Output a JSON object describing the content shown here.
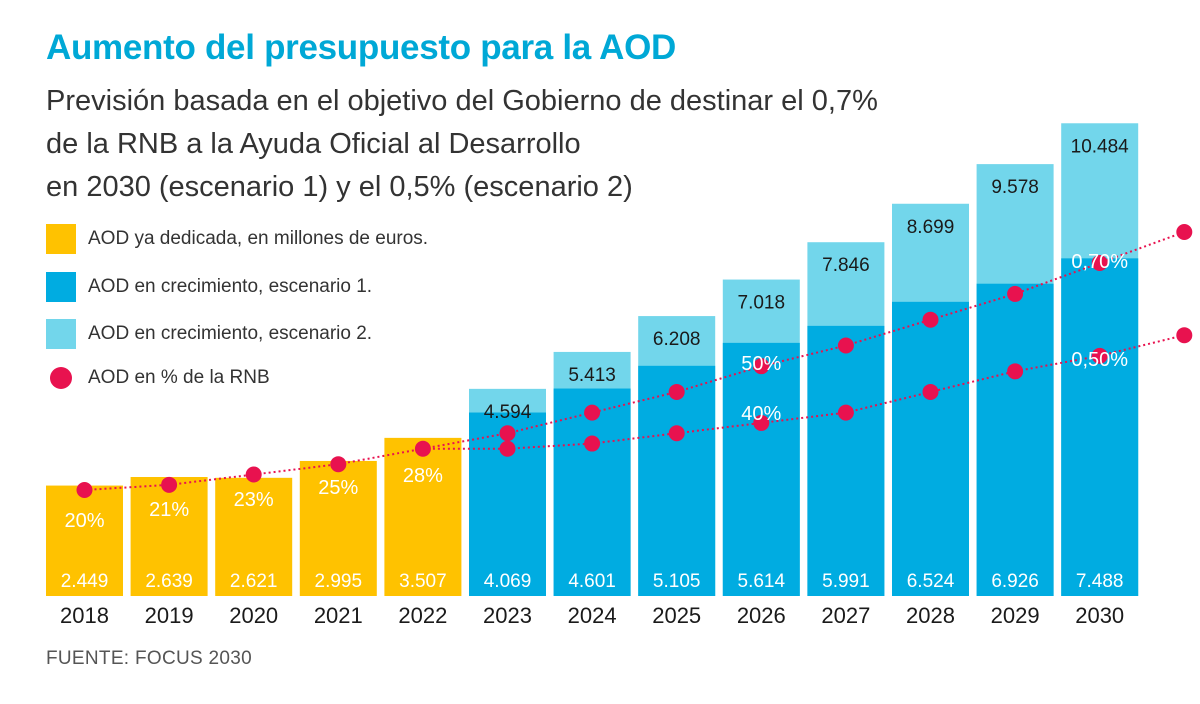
{
  "title": "Aumento del presupuesto para la AOD",
  "subtitle": [
    "Previsión basada en el objetivo del Gobierno de destinar el 0,7%",
    "de la RNB a la Ayuda Oficial al Desarrollo",
    "en 2030 (escenario 1) y el 0,5% (escenario 2)"
  ],
  "legend": [
    {
      "label": "AOD ya dedicada, en millones de euros.",
      "color": "#ffc200",
      "kind": "square"
    },
    {
      "label": "AOD en crecimiento, escenario 1.",
      "color": "#00ace1",
      "kind": "square"
    },
    {
      "label": "AOD en crecimiento, escenario 2.",
      "color": "#72d6eb",
      "kind": "square"
    },
    {
      "label": "AOD en % de la RNB",
      "color": "#e8124f",
      "kind": "dot"
    }
  ],
  "source": "FUENTE: FOCUS 2030",
  "chart_data": {
    "type": "bar",
    "categories": [
      "2018",
      "2019",
      "2020",
      "2021",
      "2022",
      "2023",
      "2024",
      "2025",
      "2026",
      "2027",
      "2028",
      "2029",
      "2030"
    ],
    "series": [
      {
        "name": "AOD ya dedicada, en millones de euros.",
        "color": "#ffc200",
        "values": [
          2449,
          2639,
          2621,
          2995,
          3507,
          null,
          null,
          null,
          null,
          null,
          null,
          null,
          null
        ],
        "labels": [
          "2.449",
          "2.639",
          "2.621",
          "2.995",
          "3.507",
          "",
          "",
          "",
          "",
          "",
          "",
          "",
          ""
        ]
      },
      {
        "name": "AOD en crecimiento, escenario 1.",
        "color": "#00ace1",
        "values": [
          null,
          null,
          null,
          null,
          null,
          4069,
          4601,
          5105,
          5614,
          5991,
          6524,
          6926,
          7488
        ],
        "labels": [
          "",
          "",
          "",
          "",
          "",
          "4.069",
          "4.601",
          "5.105",
          "5.614",
          "5.991",
          "6.524",
          "6.926",
          "7.488"
        ]
      },
      {
        "name": "AOD en crecimiento, escenario 2.",
        "color": "#72d6eb",
        "values": [
          null,
          null,
          null,
          null,
          null,
          4594,
          5413,
          6208,
          7018,
          7846,
          8699,
          9578,
          10484
        ],
        "labels": [
          "",
          "",
          "",
          "",
          "",
          "4.594",
          "5.413",
          "6.208",
          "7.018",
          "7.846",
          "8.699",
          "9.578",
          "10.484"
        ]
      }
    ],
    "rnb_share": {
      "name": "AOD en % de la RNB",
      "color": "#e8124f",
      "historical": [
        0.2,
        0.21,
        0.23,
        0.25,
        0.28
      ],
      "historical_labels": [
        "20%",
        "21%",
        "23%",
        "25%",
        "28%"
      ],
      "scenario1": [
        0.28,
        0.31,
        0.35,
        0.39,
        0.44,
        0.48,
        0.53,
        0.58,
        0.64,
        0.7
      ],
      "scenario2": [
        0.28,
        0.28,
        0.29,
        0.31,
        0.33,
        0.35,
        0.39,
        0.43,
        0.46,
        0.5
      ],
      "point_labels": [
        {
          "category": "2026",
          "text": "50%"
        },
        {
          "category": "2026",
          "text": "40%"
        },
        {
          "category": "2030",
          "text": "0,70%"
        },
        {
          "category": "2030",
          "text": "0,50%"
        }
      ]
    },
    "ylim": [
      0,
      11000
    ],
    "grid": false
  }
}
